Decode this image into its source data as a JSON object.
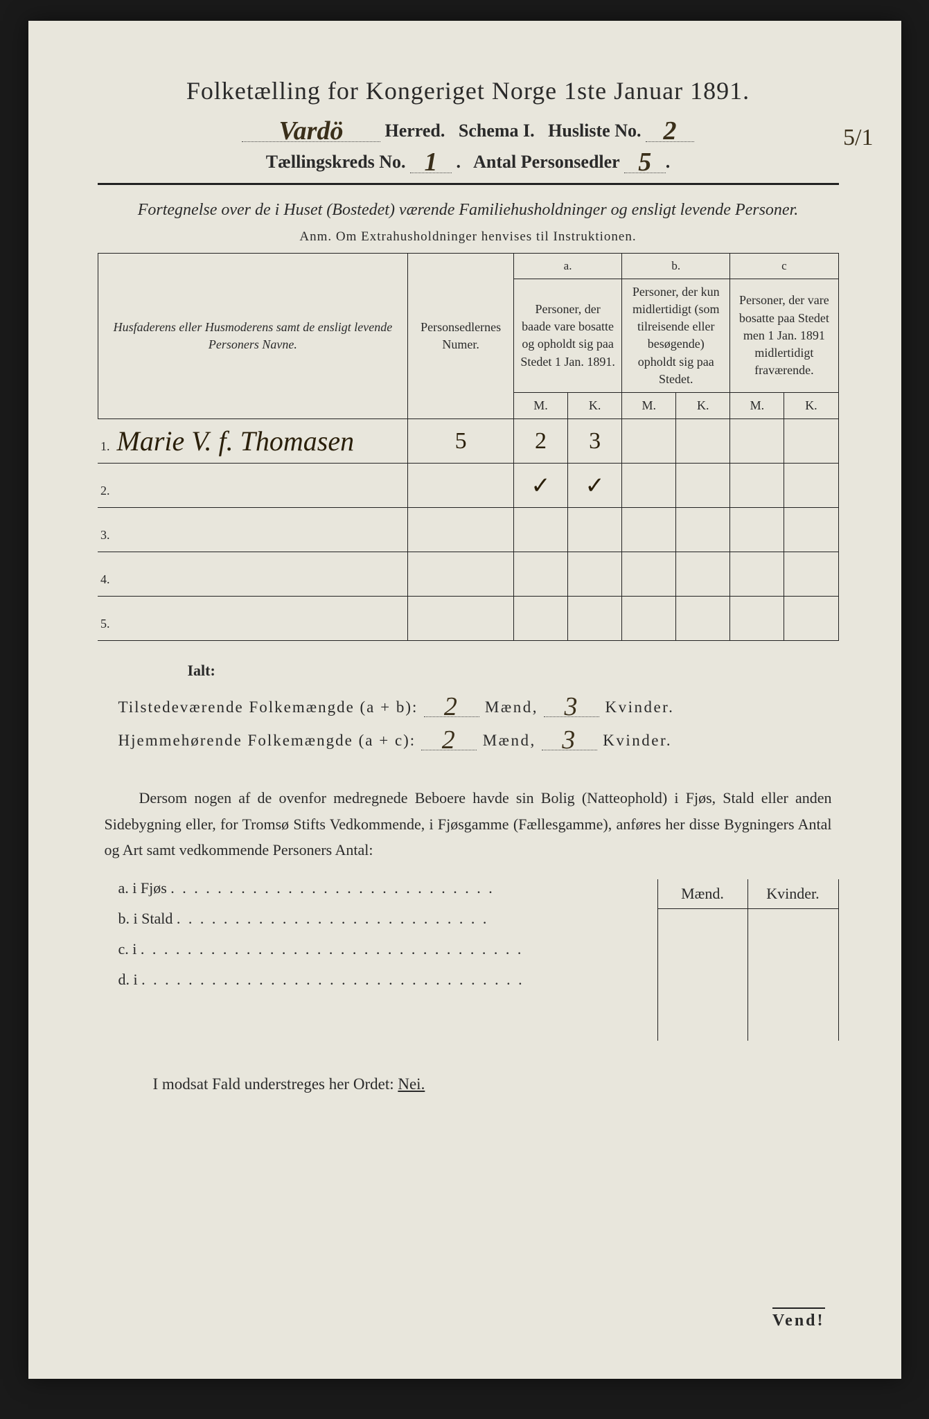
{
  "title": "Folketælling for Kongeriget Norge 1ste Januar 1891.",
  "herred_value": "Vardö",
  "herred_label": "Herred.",
  "schema_label": "Schema I.",
  "husliste_label": "Husliste No.",
  "husliste_value": "2",
  "margin_note": "5/1",
  "kreds_label": "Tællingskreds No.",
  "kreds_value": "1",
  "antal_label": "Antal Personsedler",
  "antal_value": "5",
  "instruction": "Fortegnelse over de i Huset (Bostedet) værende Familiehusholdninger og ensligt levende Personer.",
  "anm": "Anm.  Om Extrahusholdninger henvises til Instruktionen.",
  "table": {
    "col_names": "Husfaderens eller Husmoderens samt de ensligt levende Personers Navne.",
    "col_num": "Personsedlernes Numer.",
    "col_a_top": "a.",
    "col_a": "Personer, der baade vare bosatte og opholdt sig paa Stedet 1 Jan. 1891.",
    "col_b_top": "b.",
    "col_b": "Personer, der kun midlertidigt (som tilreisende eller besøgende) opholdt sig paa Stedet.",
    "col_c_top": "c",
    "col_c": "Personer, der vare bosatte paa Stedet men 1 Jan. 1891 midlertidigt fraværende.",
    "m": "M.",
    "k": "K.",
    "rows": [
      {
        "n": "1.",
        "name": "Marie V. f. Thomasen",
        "num": "5",
        "a_m": "2",
        "a_k": "3",
        "b_m": "",
        "b_k": "",
        "c_m": "",
        "c_k": ""
      },
      {
        "n": "2.",
        "name": "",
        "num": "",
        "a_m": "✓",
        "a_k": "✓",
        "b_m": "",
        "b_k": "",
        "c_m": "",
        "c_k": ""
      },
      {
        "n": "3.",
        "name": "",
        "num": "",
        "a_m": "",
        "a_k": "",
        "b_m": "",
        "b_k": "",
        "c_m": "",
        "c_k": ""
      },
      {
        "n": "4.",
        "name": "",
        "num": "",
        "a_m": "",
        "a_k": "",
        "b_m": "",
        "b_k": "",
        "c_m": "",
        "c_k": ""
      },
      {
        "n": "5.",
        "name": "",
        "num": "",
        "a_m": "",
        "a_k": "",
        "b_m": "",
        "b_k": "",
        "c_m": "",
        "c_k": ""
      }
    ]
  },
  "ialt": "Ialt:",
  "total1_label": "Tilstedeværende Folkemængde (a + b):",
  "total1_m": "2",
  "total1_k": "3",
  "total2_label": "Hjemmehørende Folkemængde (a + c):",
  "total2_m": "2",
  "total2_k": "3",
  "maend": "Mænd,",
  "kvinder": "Kvinder.",
  "paragraph": "Dersom nogen af de ovenfor medregnede Beboere havde sin Bolig (Natteophold) i Fjøs, Stald eller anden Sidebygning eller, for Tromsø Stifts Vedkommende, i Fjøsgamme (Fællesgamme), anføres her disse Bygningers Antal og Art samt vedkommende Personers Antal:",
  "buildings": {
    "a": "a.   i      Fjøs",
    "b": "b.   i      Stald",
    "c": "c.   i",
    "d": "d.   i",
    "maend": "Mænd.",
    "kvinder": "Kvinder."
  },
  "nei_line_pre": "I modsat Fald understreges her Ordet: ",
  "nei": "Nei.",
  "vend": "Vend!"
}
